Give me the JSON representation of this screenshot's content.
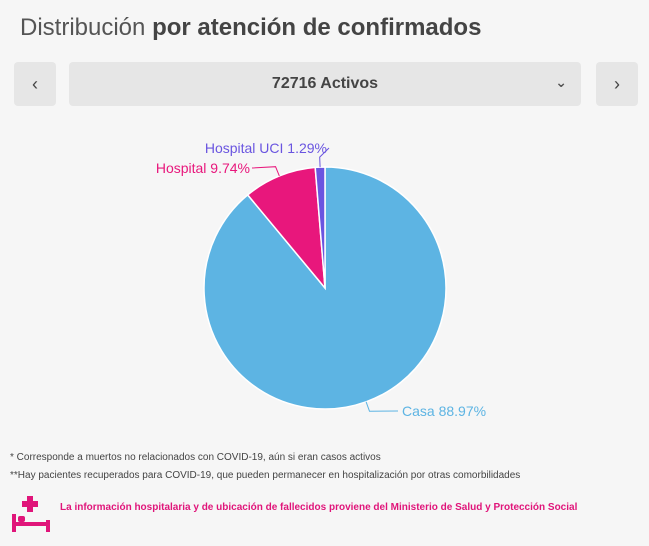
{
  "header": {
    "title_light": "Distribución",
    "title_bold": "por atención de confirmados"
  },
  "selector": {
    "value": "72716 Activos",
    "prev_icon": "chevron-left-icon",
    "next_icon": "chevron-right-icon",
    "dropdown_icon": "chevron-down-icon"
  },
  "chart_data": {
    "type": "pie",
    "categories": [
      "Casa",
      "Hospital",
      "Hospital UCI"
    ],
    "values": [
      88.97,
      9.74,
      1.29
    ],
    "unit": "%",
    "labels": [
      "Casa 88.97%",
      "Hospital 9.74%",
      "Hospital UCI 1.29%"
    ],
    "colors": [
      "#5db4e3",
      "#e8177c",
      "#6a55e0"
    ],
    "title": ""
  },
  "footnotes": {
    "note1": "* Corresponde a muertos no relacionados con COVID-19, aún si eran casos activos",
    "note2": "**Hay pacientes recuperados para COVID-19, que pueden permanecer en hospitalización por otras comorbilidades",
    "info": "La información hospitalaria y de ubicación de fallecidos proviene del Ministerio de Salud y Protección Social",
    "info_icon": "hospital-bed-icon",
    "info_color": "#e0157a"
  }
}
